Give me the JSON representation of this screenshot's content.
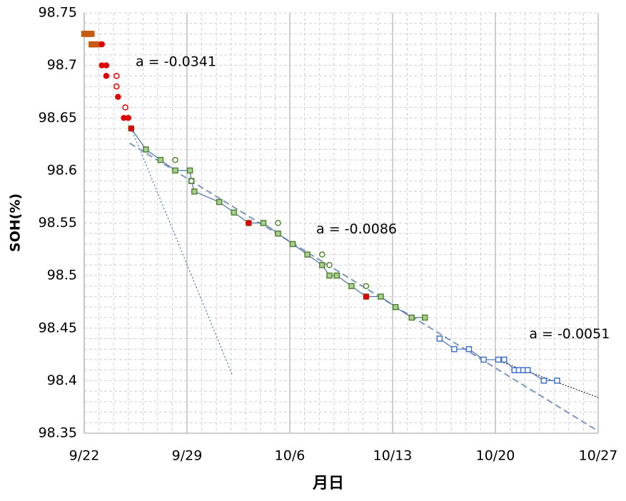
{
  "chart_data": {
    "type": "scatter",
    "x_label": "月日",
    "y_label": "SOH(%)",
    "xlim": [
      0,
      35
    ],
    "xticks": [
      {
        "value": 0,
        "label": "9/22"
      },
      {
        "value": 7,
        "label": "9/29"
      },
      {
        "value": 14,
        "label": "10/6"
      },
      {
        "value": 21,
        "label": "10/13"
      },
      {
        "value": 28,
        "label": "10/20"
      },
      {
        "value": 35,
        "label": "10/27"
      }
    ],
    "ylim": [
      98.35,
      98.75
    ],
    "yticks": [
      98.35,
      98.4,
      98.45,
      98.5,
      98.55,
      98.6,
      98.65,
      98.7,
      98.75
    ],
    "grid": true,
    "series": [
      {
        "color": "#4a6fa5",
        "marker": "none",
        "line": "dashed-fine",
        "x": [
          3.2,
          10.1
        ],
        "values": [
          98.64,
          98.405
        ]
      },
      {
        "color": "#7f96c0",
        "marker": "none",
        "line": "dashed",
        "x": [
          3.1,
          35
        ],
        "values": [
          98.626,
          98.352
        ]
      },
      {
        "color": "#222222",
        "marker": "none",
        "line": "dotted",
        "x": [
          28,
          35
        ],
        "values": [
          98.42,
          98.384
        ]
      },
      {
        "color": "#c55a11",
        "marker": "square",
        "filled": true,
        "x": [
          0,
          0.1,
          0.2,
          0.3,
          0.4,
          0.5,
          0.5,
          0.6,
          0.7,
          0.9
        ],
        "values": [
          98.73,
          98.73,
          98.73,
          98.73,
          98.73,
          98.73,
          98.72,
          98.72,
          98.72,
          98.72
        ]
      },
      {
        "color": "#4a6fa5",
        "marker": "square",
        "marker_color": "#548235",
        "line": "solid",
        "x": [
          3.2,
          4.2,
          5.2,
          6.2,
          7.2,
          7.3,
          7.5,
          9.2,
          10.2,
          11.2,
          12.2,
          13.2,
          14.2,
          15.2,
          16.2,
          16.7,
          17.2,
          18.2,
          19.2,
          20.2,
          21.2,
          22.3,
          23.2
        ],
        "values": [
          98.64,
          98.62,
          98.61,
          98.6,
          98.6,
          98.59,
          98.58,
          98.57,
          98.56,
          98.55,
          98.55,
          98.54,
          98.53,
          98.52,
          98.51,
          98.5,
          98.5,
          98.49,
          98.48,
          98.48,
          98.47,
          98.46,
          98.46
        ]
      },
      {
        "color": "#548235",
        "marker": "circle",
        "filled": false,
        "x": [
          6.2,
          7.3,
          13.2,
          16.2,
          16.7,
          19.2
        ],
        "values": [
          98.61,
          98.59,
          98.55,
          98.52,
          98.51,
          98.49
        ]
      },
      {
        "color": "#4472c4",
        "marker": "square",
        "filled": false,
        "line": "solid",
        "x": [
          24.2,
          25.2,
          26.2,
          27.2,
          28.2,
          28.6,
          29.3,
          29.6,
          29.9,
          30.2,
          31.3,
          32.2
        ],
        "values": [
          98.44,
          98.43,
          98.43,
          98.42,
          98.42,
          98.42,
          98.41,
          98.41,
          98.41,
          98.41,
          98.4,
          98.4
        ]
      },
      {
        "color": "#e00000",
        "marker": "circle",
        "filled": true,
        "x": [
          1.2,
          1.2,
          1.5,
          1.5,
          2.3,
          2.7,
          3.0,
          3.2,
          11.2,
          19.2
        ],
        "values": [
          98.72,
          98.7,
          98.7,
          98.69,
          98.67,
          98.65,
          98.65,
          98.64,
          98.55,
          98.48
        ]
      },
      {
        "color": "#e00000",
        "marker": "circle",
        "filled": false,
        "x": [
          2.2,
          2.2,
          2.8
        ],
        "values": [
          98.69,
          98.68,
          98.66
        ]
      }
    ],
    "annotations": [
      {
        "text": "a = -0.0341",
        "x": 3.5,
        "y": 98.703
      },
      {
        "text": "a = -0.0086",
        "x": 15.8,
        "y": 98.544
      },
      {
        "text": "a = -0.0051",
        "x": 30.3,
        "y": 98.444
      }
    ]
  }
}
